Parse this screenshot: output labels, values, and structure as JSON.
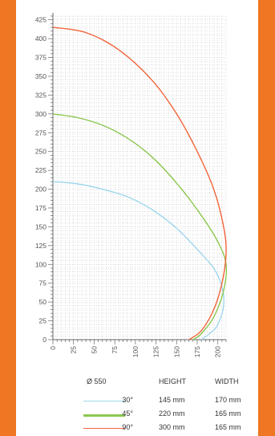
{
  "colors": {
    "background": "#ef7622",
    "panel": "#ffffff",
    "series_30": "#9fd8ec",
    "series_45": "#8cc74f",
    "series_90": "#f2643a",
    "grid": "#c8c8c8",
    "axis": "#666666"
  },
  "chart_data": {
    "type": "line",
    "grid": true,
    "xlim": [
      0,
      210
    ],
    "ylim": [
      0,
      430
    ],
    "x_ticks": [
      0,
      25,
      50,
      75,
      100,
      125,
      150,
      175,
      200
    ],
    "y_ticks": [
      0,
      25,
      50,
      75,
      100,
      125,
      150,
      175,
      200,
      225,
      250,
      275,
      300,
      325,
      350,
      375,
      400,
      425
    ],
    "series": [
      {
        "name": "30°",
        "color": "#9fd8ec",
        "points": [
          [
            0,
            210
          ],
          [
            30,
            207
          ],
          [
            60,
            200
          ],
          [
            90,
            190
          ],
          [
            120,
            173
          ],
          [
            150,
            148
          ],
          [
            175,
            120
          ],
          [
            195,
            95
          ],
          [
            205,
            70
          ],
          [
            207,
            45
          ],
          [
            200,
            20
          ],
          [
            190,
            8
          ],
          [
            180,
            0
          ]
        ]
      },
      {
        "name": "45°",
        "color": "#8cc74f",
        "points": [
          [
            0,
            300
          ],
          [
            30,
            295
          ],
          [
            60,
            285
          ],
          [
            90,
            268
          ],
          [
            120,
            243
          ],
          [
            150,
            208
          ],
          [
            180,
            165
          ],
          [
            200,
            130
          ],
          [
            210,
            100
          ],
          [
            207,
            65
          ],
          [
            195,
            30
          ],
          [
            180,
            8
          ],
          [
            170,
            0
          ]
        ]
      },
      {
        "name": "90°",
        "color": "#f2643a",
        "points": [
          [
            0,
            415
          ],
          [
            40,
            408
          ],
          [
            80,
            385
          ],
          [
            120,
            345
          ],
          [
            150,
            300
          ],
          [
            175,
            250
          ],
          [
            195,
            200
          ],
          [
            207,
            150
          ],
          [
            210,
            115
          ],
          [
            205,
            75
          ],
          [
            195,
            40
          ],
          [
            180,
            12
          ],
          [
            165,
            0
          ]
        ]
      }
    ]
  },
  "legend": {
    "diameter_label": "Ø 550",
    "height_header": "HEIGHT",
    "width_header": "WIDTH",
    "rows": [
      {
        "angle": "30°",
        "height": "145 mm",
        "width": "170 mm",
        "color": "#9fd8ec",
        "stroke": 1
      },
      {
        "angle": "45°",
        "height": "220 mm",
        "width": "165 mm",
        "color": "#8cc74f",
        "stroke": 3
      },
      {
        "angle": "90°",
        "height": "300 mm",
        "width": "165 mm",
        "color": "#f2643a",
        "stroke": 1
      }
    ]
  }
}
